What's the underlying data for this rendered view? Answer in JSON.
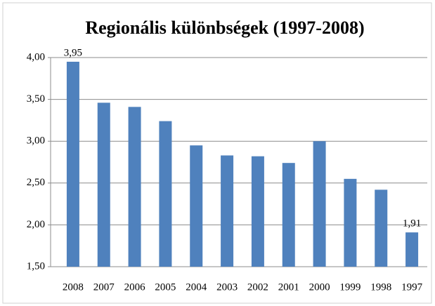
{
  "chart_data": {
    "type": "bar",
    "title": "Regionális különbségek (1997-2008)",
    "categories": [
      "2008",
      "2007",
      "2006",
      "2005",
      "2004",
      "2003",
      "2002",
      "2001",
      "2000",
      "1999",
      "1998",
      "1997"
    ],
    "values": [
      3.95,
      3.46,
      3.41,
      3.24,
      2.95,
      2.83,
      2.82,
      2.74,
      3.0,
      2.55,
      2.42,
      1.91
    ],
    "value_labels": [
      "3,95",
      null,
      null,
      null,
      null,
      null,
      null,
      null,
      null,
      null,
      null,
      "1,91"
    ],
    "color": "#4f81bd",
    "ylim": [
      1.5,
      4.0
    ],
    "yticks": [
      {
        "value": 1.5,
        "label": "1,50"
      },
      {
        "value": 2.0,
        "label": "2,00"
      },
      {
        "value": 2.5,
        "label": "2,50"
      },
      {
        "value": 3.0,
        "label": "3,00"
      },
      {
        "value": 3.5,
        "label": "3,50"
      },
      {
        "value": 4.0,
        "label": "4,00"
      }
    ],
    "grid": true
  }
}
